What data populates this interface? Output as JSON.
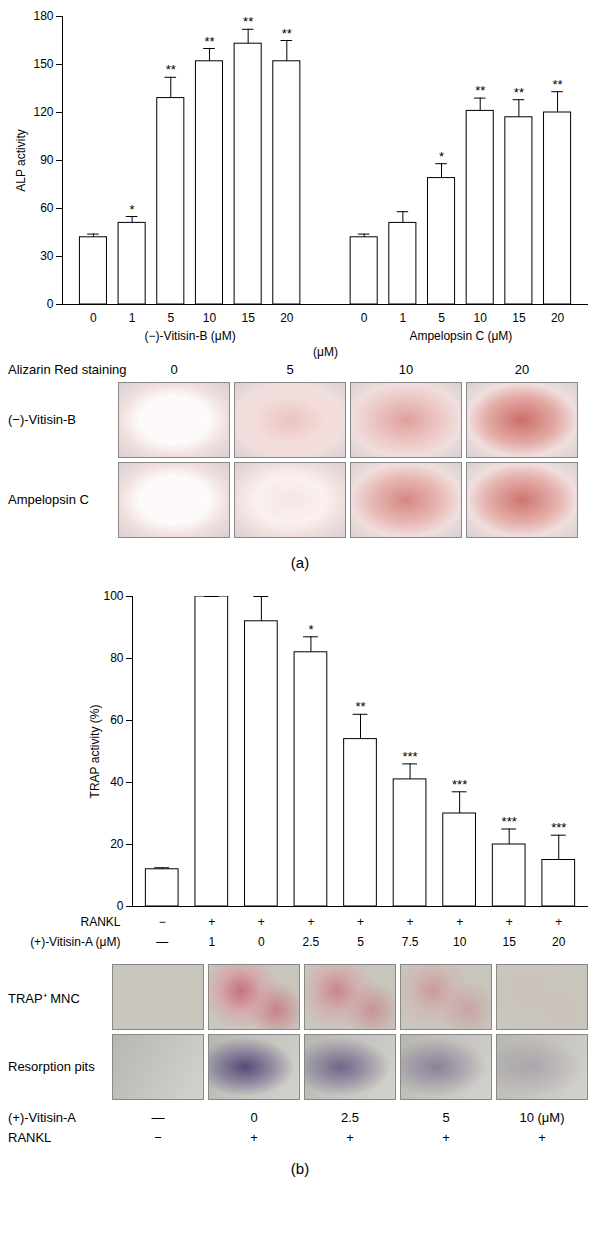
{
  "chart_data": [
    {
      "type": "bar",
      "panel": "(a)",
      "y_label": "ALP activity",
      "ylim": [
        0,
        180
      ],
      "yticks": [
        0,
        30,
        60,
        90,
        120,
        150,
        180
      ],
      "color": "#ffffff",
      "groups": [
        {
          "label": "(−)-Vitisin-B (μM)",
          "categories": [
            "0",
            "1",
            "5",
            "10",
            "15",
            "20"
          ],
          "values": [
            42,
            51,
            129,
            152,
            163,
            152
          ],
          "errors": [
            2,
            4,
            13,
            8,
            9,
            13
          ],
          "significance": [
            null,
            "*",
            "**",
            "**",
            "**",
            "**"
          ]
        },
        {
          "label": "Ampelopsin C (μM)",
          "categories": [
            "0",
            "1",
            "5",
            "10",
            "15",
            "20"
          ],
          "values": [
            42,
            51,
            79,
            121,
            117,
            120
          ],
          "errors": [
            2,
            7,
            9,
            8,
            11,
            13
          ],
          "significance": [
            null,
            null,
            "*",
            "**",
            "**",
            "**"
          ]
        }
      ],
      "annotations": [
        "(μM)"
      ],
      "image_grid": {
        "title": "Alizarin Red staining",
        "columns": [
          "0",
          "5",
          "10",
          "20"
        ],
        "rows": [
          "(−)-Vitisin-B",
          "Ampelopsin C"
        ]
      }
    },
    {
      "type": "bar",
      "panel": "(b)",
      "y_label": "TRAP activity (%)",
      "ylim": [
        0,
        100
      ],
      "yticks": [
        0,
        20,
        40,
        60,
        80,
        100
      ],
      "color": "#ffffff",
      "category_rows": [
        {
          "label": "RANKL",
          "labels": [
            "−",
            "+",
            "+",
            "+",
            "+",
            "+",
            "+",
            "+",
            "+"
          ]
        },
        {
          "label": "(+)-Vitisin-A (μM)",
          "labels": [
            "—",
            "1",
            "0",
            "2.5",
            "5",
            "7.5",
            "10",
            "15",
            "20"
          ]
        }
      ],
      "values": [
        12,
        100,
        92,
        82,
        54,
        41,
        30,
        20,
        15
      ],
      "errors": [
        0.5,
        0,
        8,
        5,
        8,
        5,
        7,
        5,
        8
      ],
      "significance": [
        null,
        null,
        null,
        "*",
        "**",
        "***",
        "***",
        "***",
        "***"
      ],
      "image_grid": {
        "rows": [
          "TRAP⁺ MNC",
          "Resorption pits"
        ],
        "column_rows": [
          {
            "label": "(+)-Vitisin-A",
            "labels": [
              "—",
              "0",
              "2.5",
              "5",
              "10 (μM)"
            ]
          },
          {
            "label": "RANKL",
            "labels": [
              "−",
              "+",
              "+",
              "+",
              "+"
            ]
          }
        ]
      }
    }
  ]
}
